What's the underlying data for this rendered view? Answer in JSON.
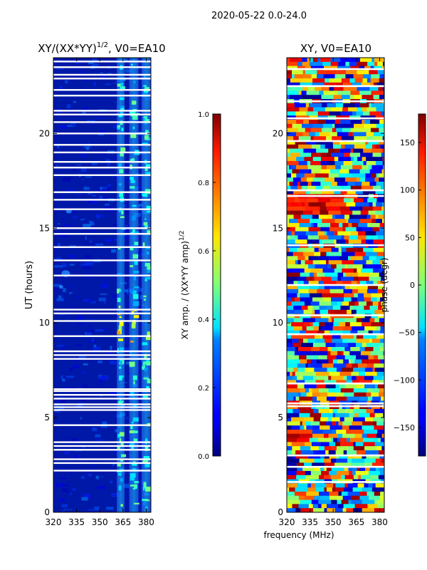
{
  "suptitle": "2020-05-22 0.0-24.0",
  "xlabel_shared": "frequency (MHz)",
  "chart_data": [
    {
      "type": "heatmap",
      "title_main": "XY/(XX*YY)",
      "title_sup": "1/2",
      "title_tail": ", V0=EA10",
      "ylabel": "UT (hours)",
      "xlim": [
        320,
        383
      ],
      "ylim": [
        0,
        24
      ],
      "xticks": [
        320,
        335,
        350,
        365,
        380
      ],
      "yticks": [
        0,
        5,
        10,
        15,
        20
      ],
      "bright_band_mhz": [
        [
          361,
          366
        ],
        [
          369,
          375
        ],
        [
          377,
          383
        ]
      ],
      "gap_hours": [
        2.2,
        2.6,
        2.8,
        3.3,
        3.5,
        3.7,
        4.6,
        5.4,
        5.55,
        5.7,
        6.0,
        6.2,
        6.4,
        6.5,
        8.1,
        8.3,
        8.5,
        9.3,
        10.1,
        10.5,
        10.7,
        12.5,
        13.3,
        14.0,
        14.7,
        15.0,
        16.0,
        16.5,
        16.9,
        17.8,
        18.2,
        18.5,
        19.0,
        19.4,
        20.0,
        20.6,
        21.0,
        21.2,
        22.0,
        22.3,
        22.9,
        23.1,
        23.5,
        23.8
      ]
    },
    {
      "type": "colorbar",
      "label_main": "XY amp. / (XX*YY amp)",
      "label_sup": "1/2",
      "range": [
        0.0,
        1.0
      ],
      "ticks": [
        "0.0",
        "0.2",
        "0.4",
        "0.6",
        "0.8",
        "1.0"
      ],
      "colormap": "jet"
    },
    {
      "type": "heatmap",
      "title": "XY, V0=EA10",
      "xlim": [
        320,
        383
      ],
      "ylim": [
        0,
        24
      ],
      "xticks": [
        320,
        335,
        350,
        365,
        380
      ],
      "yticks": [
        0,
        5,
        10,
        15,
        20
      ],
      "gap_hours": [
        1.6,
        2.4,
        3.0,
        5.6,
        5.75,
        6.8,
        9.4,
        10.4,
        12.0,
        14.1,
        16.7,
        17.0,
        19.6,
        20.8,
        21.7,
        22.5,
        23.4
      ]
    },
    {
      "type": "colorbar",
      "label": "phase (degr)",
      "range": [
        -180,
        180
      ],
      "ticks": [
        150,
        100,
        50,
        0,
        -50,
        -100,
        -150
      ],
      "tick_labels": [
        "150",
        "100",
        "50",
        "0",
        "−50",
        "−100",
        "−150"
      ],
      "colormap": "jet"
    }
  ]
}
